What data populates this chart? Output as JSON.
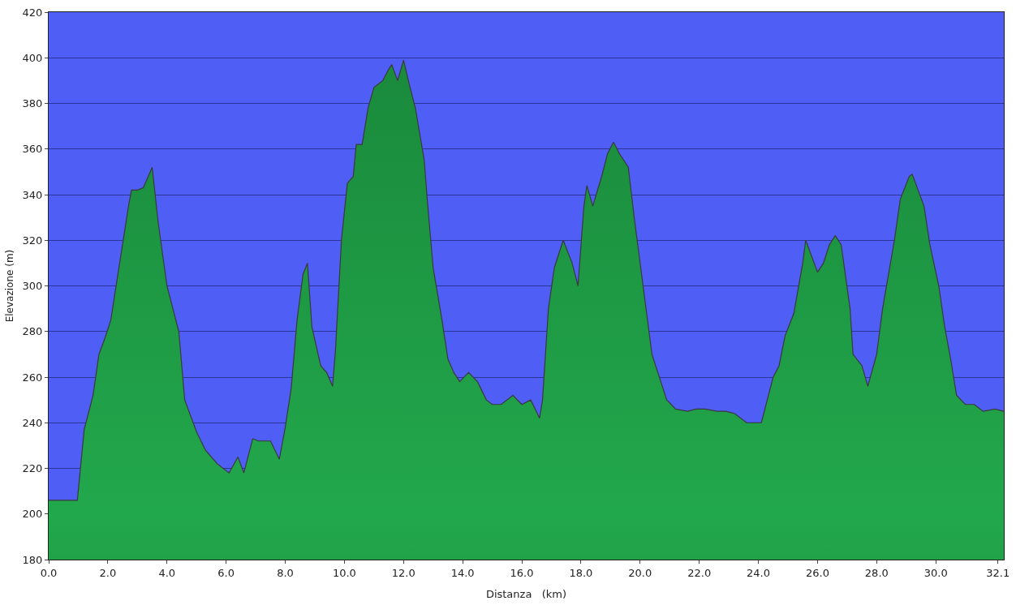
{
  "chart_data": {
    "type": "area",
    "xlabel": "Distanza   (km)",
    "ylabel": "Elevazione (m)",
    "x": [
      0,
      0.97,
      1.2,
      1.5,
      1.7,
      1.9,
      2.1,
      2.4,
      2.7,
      2.8,
      3.0,
      3.2,
      3.5,
      3.7,
      4.0,
      4.4,
      4.6,
      5.0,
      5.3,
      5.7,
      6.1,
      6.4,
      6.6,
      6.9,
      7.1,
      7.5,
      7.8,
      8.0,
      8.2,
      8.4,
      8.6,
      8.75,
      8.9,
      9.2,
      9.4,
      9.6,
      9.7,
      9.9,
      10.1,
      10.3,
      10.4,
      10.6,
      10.8,
      11.0,
      11.3,
      11.5,
      11.6,
      11.8,
      12.0,
      12.2,
      12.4,
      12.7,
      12.8,
      13.0,
      13.3,
      13.5,
      13.7,
      13.9,
      14.2,
      14.5,
      14.8,
      15.0,
      15.3,
      15.7,
      16.0,
      16.3,
      16.6,
      16.7,
      16.9,
      17.1,
      17.4,
      17.7,
      17.9,
      18.1,
      18.2,
      18.4,
      18.7,
      18.9,
      19.1,
      19.3,
      19.6,
      19.8,
      20.0,
      20.2,
      20.4,
      20.7,
      20.9,
      21.2,
      21.6,
      21.9,
      22.2,
      22.6,
      22.9,
      23.2,
      23.6,
      23.9,
      24.1,
      24.3,
      24.5,
      24.7,
      24.9,
      25.2,
      25.5,
      25.6,
      26.0,
      26.2,
      26.4,
      26.6,
      26.8,
      27.1,
      27.2,
      27.5,
      27.7,
      28.0,
      28.2,
      28.4,
      28.6,
      28.8,
      29.1,
      29.2,
      29.4,
      29.6,
      29.8,
      30.1,
      30.3,
      30.5,
      30.7,
      31.0,
      31.3,
      31.6,
      32.0,
      32.3
    ],
    "series": [
      {
        "color": "#22a84c",
        "values": [
          206,
          206,
          237,
          252,
          270,
          277,
          285,
          310,
          335,
          342,
          342,
          343,
          352,
          328,
          300,
          280,
          250,
          236,
          228,
          222,
          218,
          225,
          218,
          233,
          232,
          232,
          224,
          238,
          255,
          285,
          305,
          310,
          282,
          265,
          262,
          256,
          272,
          320,
          345,
          348,
          362,
          362,
          378,
          387,
          390,
          395,
          397,
          390,
          399,
          388,
          378,
          355,
          338,
          308,
          285,
          268,
          262,
          258,
          262,
          258,
          250,
          248,
          248,
          252,
          248,
          250,
          242,
          250,
          290,
          308,
          320,
          310,
          300,
          335,
          344,
          335,
          348,
          358,
          363,
          358,
          352,
          330,
          310,
          290,
          270,
          258,
          250,
          246,
          245,
          246,
          246,
          245,
          245,
          244,
          240,
          240,
          240,
          250,
          260,
          265,
          278,
          288,
          310,
          320,
          306,
          310,
          318,
          322,
          318,
          290,
          270,
          265,
          256,
          270,
          290,
          305,
          320,
          338,
          348,
          349,
          342,
          335,
          318,
          300,
          282,
          268,
          252,
          248,
          248,
          245,
          246,
          245
        ]
      }
    ],
    "xlim": [
      0,
      32.3
    ],
    "ylim": [
      180,
      420
    ],
    "xticks": [
      {
        "value": 0,
        "label": "0.0"
      },
      {
        "value": 2,
        "label": "2.0"
      },
      {
        "value": 4,
        "label": "4.0"
      },
      {
        "value": 6,
        "label": "6.0"
      },
      {
        "value": 8,
        "label": "8.0"
      },
      {
        "value": 10,
        "label": "10.0"
      },
      {
        "value": 12,
        "label": "12.0"
      },
      {
        "value": 14,
        "label": "14.0"
      },
      {
        "value": 16,
        "label": "16.0"
      },
      {
        "value": 18,
        "label": "18.0"
      },
      {
        "value": 20,
        "label": "20.0"
      },
      {
        "value": 22,
        "label": "22.0"
      },
      {
        "value": 24,
        "label": "24.0"
      },
      {
        "value": 26,
        "label": "26.0"
      },
      {
        "value": 28,
        "label": "28.0"
      },
      {
        "value": 30,
        "label": "30.0"
      },
      {
        "value": 32.1,
        "label": "32.1"
      }
    ],
    "yticks": [
      180,
      200,
      220,
      240,
      260,
      280,
      300,
      320,
      340,
      360,
      380,
      400,
      420
    ],
    "grid": "y"
  }
}
